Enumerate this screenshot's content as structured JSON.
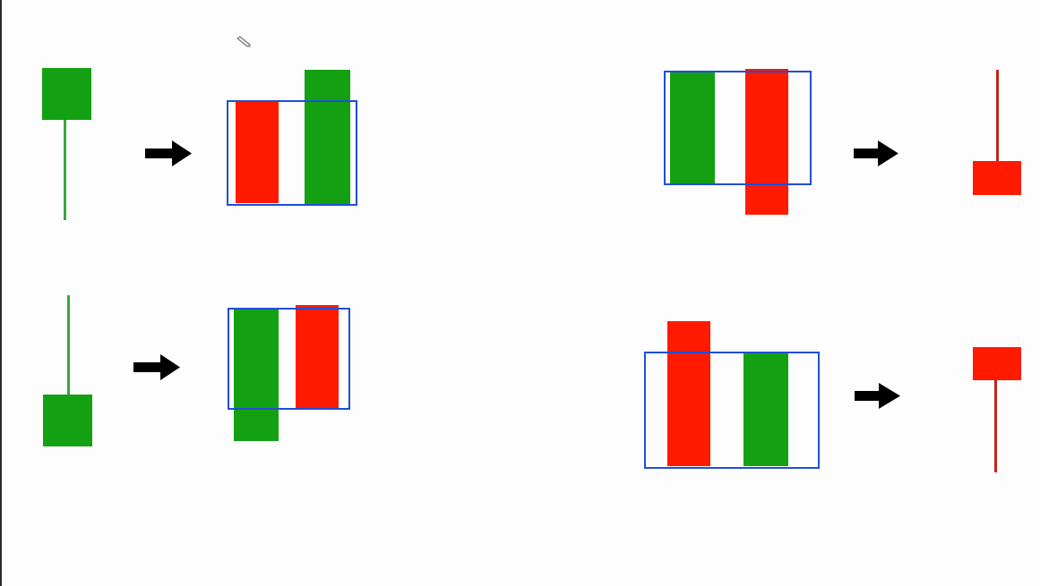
{
  "colors": {
    "green": "#13a113",
    "green_wick": "#3aa83a",
    "red": "#ff1a00",
    "red_wick": "#c0251a",
    "highlight_box": "#1f4fd6",
    "arrow": "#000000",
    "background": "#fdfdfd"
  },
  "icons": {
    "arrow": "right-arrow-icon",
    "cursor": "pencil-cursor-icon"
  },
  "panels": [
    {
      "id": "top-left",
      "pattern_candles": [
        {
          "color": "green",
          "shape": "hanging-body-top-long-lower-wick"
        }
      ],
      "result_candles": [
        {
          "color": "red",
          "order": 1
        },
        {
          "color": "green",
          "order": 2
        }
      ],
      "highlighted": true
    },
    {
      "id": "bottom-left",
      "pattern_candles": [
        {
          "color": "green",
          "shape": "body-bottom-long-upper-wick"
        }
      ],
      "result_candles": [
        {
          "color": "green",
          "order": 1
        },
        {
          "color": "red",
          "order": 2
        }
      ],
      "highlighted": true
    },
    {
      "id": "top-right",
      "pattern_candles": [
        {
          "color": "green",
          "order": 1
        },
        {
          "color": "red",
          "order": 2
        }
      ],
      "result_candles": [
        {
          "color": "red",
          "shape": "body-bottom-long-upper-wick"
        }
      ],
      "highlighted": true
    },
    {
      "id": "bottom-right",
      "pattern_candles": [
        {
          "color": "red",
          "order": 1
        },
        {
          "color": "green",
          "order": 2
        }
      ],
      "result_candles": [
        {
          "color": "red",
          "shape": "body-top-long-lower-wick"
        }
      ],
      "highlighted": true
    }
  ]
}
